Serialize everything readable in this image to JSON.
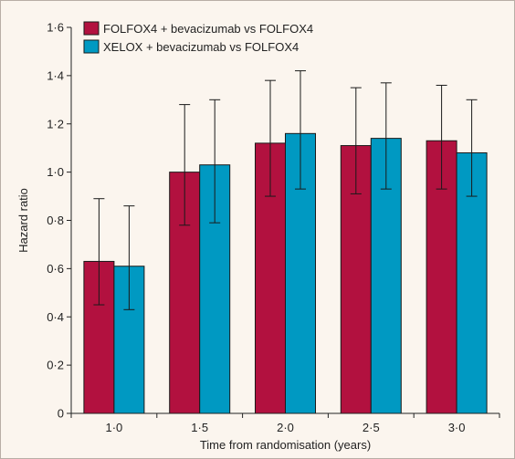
{
  "chart_data": {
    "type": "bar",
    "xlabel": "Time from randomisation (years)",
    "ylabel": "Hazard ratio",
    "ylim": [
      0,
      1.6
    ],
    "yticks": [
      0,
      0.2,
      0.4,
      0.6,
      0.8,
      1.0,
      1.2,
      1.4,
      1.6
    ],
    "ytick_labels": [
      "0",
      "0·2",
      "0·4",
      "0·6",
      "0·8",
      "1·0",
      "1·2",
      "1·4",
      "1·6"
    ],
    "categories": [
      "1·0",
      "1·5",
      "2·0",
      "2·5",
      "3·0"
    ],
    "legend_position": "top-left",
    "grid": false,
    "series": [
      {
        "name": "FOLFOX4 + bevacizumab vs FOLFOX4",
        "color": "#b2113f",
        "values": [
          0.63,
          1.0,
          1.12,
          1.11,
          1.13
        ],
        "ci_lower": [
          0.45,
          0.78,
          0.9,
          0.91,
          0.93
        ],
        "ci_upper": [
          0.89,
          1.28,
          1.38,
          1.35,
          1.36
        ]
      },
      {
        "name": "XELOX + bevacizumab vs FOLFOX4",
        "color": "#0099c2",
        "values": [
          0.61,
          1.03,
          1.16,
          1.14,
          1.08
        ],
        "ci_lower": [
          0.43,
          0.79,
          0.93,
          0.93,
          0.9
        ],
        "ci_upper": [
          0.86,
          1.3,
          1.42,
          1.37,
          1.3
        ]
      }
    ]
  }
}
